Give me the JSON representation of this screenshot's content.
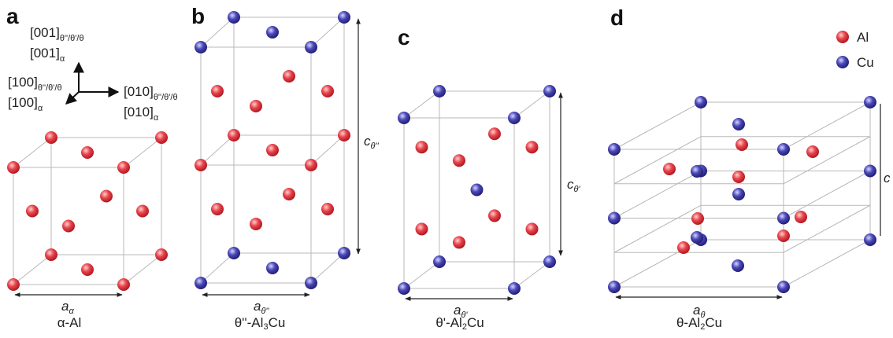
{
  "panels": [
    {
      "label": "a",
      "caption": [
        "α-Al"
      ],
      "a": {
        "symbol": "a",
        "sub": "α"
      }
    },
    {
      "label": "b",
      "caption": [
        "θ''-Al",
        "3",
        "Cu"
      ],
      "a": {
        "symbol": "a",
        "sub": "θ''"
      },
      "c": {
        "symbol": "c",
        "sub": "θ''"
      }
    },
    {
      "label": "c",
      "caption": [
        "θ'-Al",
        "2",
        "Cu"
      ],
      "a": {
        "symbol": "a",
        "sub": "θ'"
      },
      "c": {
        "symbol": "c",
        "sub": "θ'"
      }
    },
    {
      "label": "d",
      "caption": [
        "θ-Al",
        "2",
        "Cu"
      ],
      "a": {
        "symbol": "a",
        "sub": "θ"
      },
      "c": {
        "symbol": "c"
      }
    }
  ],
  "axes": {
    "up": [
      {
        "text": "[001]",
        "sub": "θ''/θ'/θ"
      },
      {
        "text": "[001]",
        "sub": "α"
      }
    ],
    "out": [
      {
        "text": "[100]",
        "sub": "θ''/θ'/θ"
      },
      {
        "text": "[100]",
        "sub": "α"
      }
    ],
    "right": [
      {
        "text": "[010]",
        "sub": "θ''/θ'/θ"
      },
      {
        "text": "[010]",
        "sub": "α"
      }
    ]
  },
  "legend": [
    {
      "label": "Al"
    },
    {
      "label": "Cu"
    }
  ]
}
